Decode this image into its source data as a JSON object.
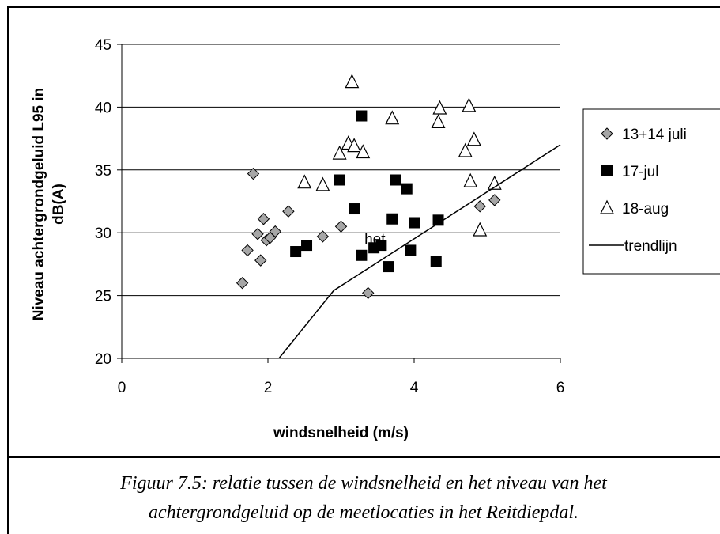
{
  "chart_data": {
    "type": "scatter",
    "title": "",
    "xlabel": "windsnelheid (m/s)",
    "ylabel_lines": [
      "Niveau achtergrondgeluid L95 in",
      "dB(A)"
    ],
    "xlim": [
      0,
      6
    ],
    "ylim": [
      20,
      45
    ],
    "x_ticks": [
      0,
      2,
      4,
      6
    ],
    "y_ticks": [
      20,
      25,
      30,
      35,
      40,
      45
    ],
    "grid": "horizontal",
    "legend_position": "right",
    "series": [
      {
        "name": "13+14 juli",
        "marker": "diamond",
        "color": "#a6a6a6",
        "points": [
          [
            1.65,
            26.0
          ],
          [
            1.72,
            28.6
          ],
          [
            1.8,
            34.7
          ],
          [
            1.86,
            29.9
          ],
          [
            1.9,
            27.8
          ],
          [
            1.94,
            31.1
          ],
          [
            1.98,
            29.4
          ],
          [
            2.03,
            29.6
          ],
          [
            2.1,
            30.1
          ],
          [
            2.28,
            31.7
          ],
          [
            2.75,
            29.7
          ],
          [
            3.0,
            30.5
          ],
          [
            3.37,
            25.2
          ],
          [
            4.9,
            32.1
          ],
          [
            5.1,
            32.6
          ]
        ]
      },
      {
        "name": "17-jul",
        "marker": "square",
        "color": "#000000",
        "points": [
          [
            2.38,
            28.5
          ],
          [
            2.53,
            29.0
          ],
          [
            2.98,
            34.2
          ],
          [
            3.18,
            31.9
          ],
          [
            3.28,
            39.3
          ],
          [
            3.28,
            28.2
          ],
          [
            3.45,
            28.8
          ],
          [
            3.55,
            29.0
          ],
          [
            3.65,
            27.3
          ],
          [
            3.7,
            31.1
          ],
          [
            3.75,
            34.2
          ],
          [
            3.9,
            33.5
          ],
          [
            3.95,
            28.6
          ],
          [
            4.0,
            30.8
          ],
          [
            4.3,
            27.7
          ],
          [
            4.33,
            31.0
          ]
        ]
      },
      {
        "name": "18-aug",
        "marker": "triangle",
        "color": "#ffffff",
        "points": [
          [
            2.5,
            34.0
          ],
          [
            2.75,
            33.8
          ],
          [
            2.98,
            36.3
          ],
          [
            3.1,
            37.1
          ],
          [
            3.15,
            42.0
          ],
          [
            3.18,
            36.9
          ],
          [
            3.3,
            36.4
          ],
          [
            3.7,
            39.1
          ],
          [
            4.33,
            38.8
          ],
          [
            4.35,
            39.9
          ],
          [
            4.7,
            36.5
          ],
          [
            4.75,
            40.1
          ],
          [
            4.77,
            34.1
          ],
          [
            4.82,
            37.4
          ],
          [
            4.9,
            30.2
          ],
          [
            5.1,
            33.9
          ]
        ]
      },
      {
        "name": "trendlijn",
        "type": "line",
        "color": "#000000",
        "points": [
          [
            2.15,
            20.0
          ],
          [
            2.9,
            25.4
          ],
          [
            6.0,
            37.0
          ]
        ]
      }
    ],
    "annotations": [
      "het"
    ]
  },
  "caption": {
    "line1": "Figuur 7.5:  relatie tussen de windsnelheid en het niveau van het",
    "line2": "achtergrondgeluid op de  meetlocaties in het  Reitdiepdal."
  }
}
